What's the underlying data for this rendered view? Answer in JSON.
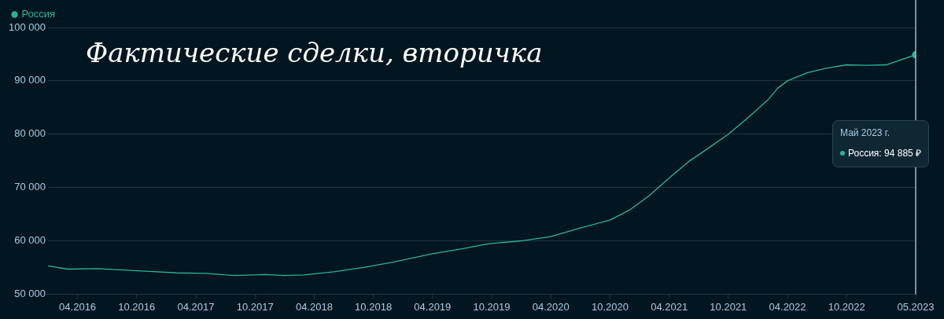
{
  "chart_data": {
    "type": "line",
    "title": "Фактические сделки, вторичка",
    "x": [
      "2016-01",
      "2016-03",
      "2016-06",
      "2016-09",
      "2016-12",
      "2017-02",
      "2017-05",
      "2017-07",
      "2017-08",
      "2017-11",
      "2018-01",
      "2018-03",
      "2018-06",
      "2018-09",
      "2018-12",
      "2019-04",
      "2019-07",
      "2019-09",
      "2019-10",
      "2020-01",
      "2020-04",
      "2020-07",
      "2020-10",
      "2020-12",
      "2021-02",
      "2021-04",
      "2021-06",
      "2021-08",
      "2021-10",
      "2021-12",
      "2022-02",
      "2022-03",
      "2022-04",
      "2022-06",
      "2022-08",
      "2022-10",
      "2022-12",
      "2023-02",
      "2023-05"
    ],
    "series": [
      {
        "name": "Россия",
        "color": "#2bb592",
        "values": [
          55300,
          54700,
          54800,
          54500,
          54200,
          54000,
          53900,
          53600,
          53500,
          53700,
          53500,
          53600,
          54200,
          55000,
          56000,
          57600,
          58500,
          59200,
          59500,
          60000,
          60800,
          62400,
          63900,
          65800,
          68500,
          71800,
          74900,
          77400,
          80000,
          83100,
          86400,
          88600,
          90000,
          91500,
          92400,
          93000,
          92900,
          93000,
          94885
        ]
      }
    ],
    "xlim": [
      "2016-01",
      "2023-05"
    ],
    "xticks": [
      {
        "value": "2016-04",
        "label": "04.2016"
      },
      {
        "value": "2016-10",
        "label": "10.2016"
      },
      {
        "value": "2017-04",
        "label": "04.2017"
      },
      {
        "value": "2017-10",
        "label": "10.2017"
      },
      {
        "value": "2018-04",
        "label": "04.2018"
      },
      {
        "value": "2018-10",
        "label": "10.2018"
      },
      {
        "value": "2019-04",
        "label": "04.2019"
      },
      {
        "value": "2019-10",
        "label": "10.2019"
      },
      {
        "value": "2020-04",
        "label": "04.2020"
      },
      {
        "value": "2020-10",
        "label": "10.2020"
      },
      {
        "value": "2021-04",
        "label": "04.2021"
      },
      {
        "value": "2021-10",
        "label": "10.2021"
      },
      {
        "value": "2022-04",
        "label": "04.2022"
      },
      {
        "value": "2022-10",
        "label": "10.2022"
      },
      {
        "value": "2023-05",
        "label": "05.2023"
      }
    ],
    "ylim": [
      50000,
      100000
    ],
    "yticks": [
      {
        "value": 50000,
        "label": "50 000"
      },
      {
        "value": 60000,
        "label": "60 000"
      },
      {
        "value": 70000,
        "label": "70 000"
      },
      {
        "value": 80000,
        "label": "80 000"
      },
      {
        "value": 90000,
        "label": "90 000"
      },
      {
        "value": 100000,
        "label": "100 000"
      }
    ],
    "grid": "y",
    "legend": "top left",
    "marker": "none",
    "line_style": "solid",
    "ref_lines": [
      {
        "axis": "x",
        "value": "2023-05",
        "color": "#aab8c2"
      }
    ],
    "annotations": [
      "Май 2023 г.\nРоссия: 94 885 ₽"
    ]
  }
}
